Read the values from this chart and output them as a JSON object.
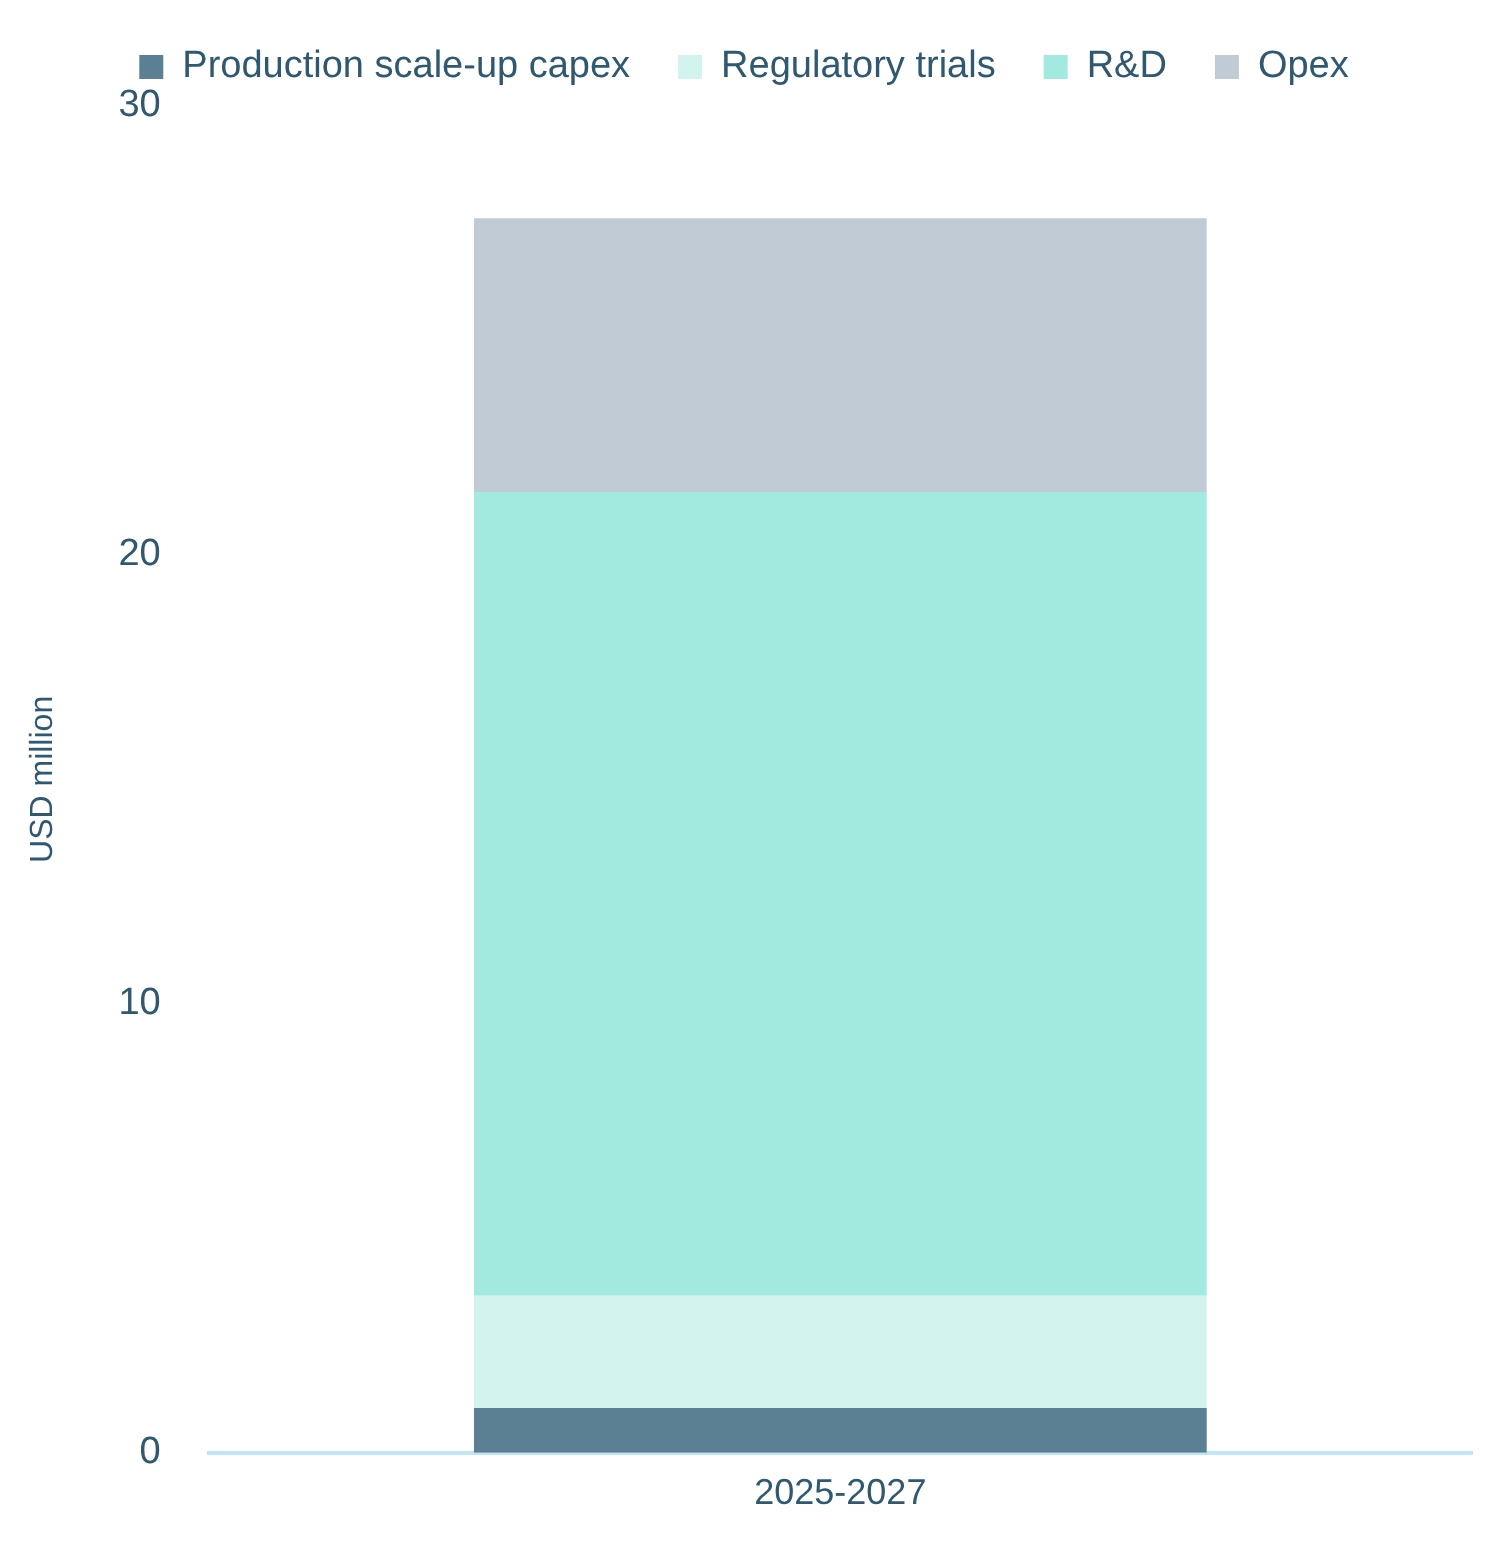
{
  "chart_data": {
    "type": "bar",
    "stacked": true,
    "ylabel": "USD million",
    "categories": [
      "2025-2027"
    ],
    "series": [
      {
        "name": "Production scale-up capex",
        "color": "#5b7f93",
        "values": [
          1.0
        ]
      },
      {
        "name": "Regulatory trials",
        "color": "#d3f4ee",
        "values": [
          2.5
        ]
      },
      {
        "name": "R&D",
        "color": "#a2eadf",
        "values": [
          17.9
        ]
      },
      {
        "name": "Opex",
        "color": "#c1cbd5",
        "values": [
          6.1
        ]
      }
    ],
    "ylim": [
      0,
      30
    ],
    "yticks": [
      0,
      10,
      20,
      30
    ],
    "grid": false,
    "legend": "top"
  }
}
